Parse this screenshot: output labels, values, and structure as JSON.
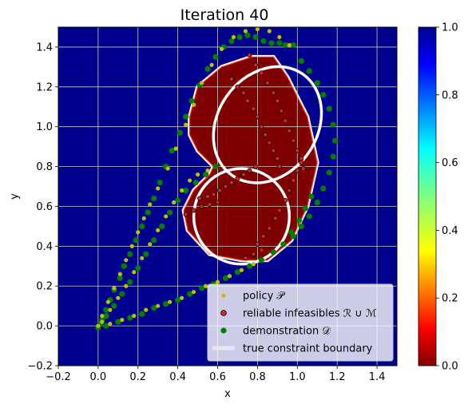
{
  "chart_data": {
    "type": "scatter",
    "title": "Iteration 40",
    "xlabel": "x",
    "ylabel": "y",
    "xlim": [
      -0.2,
      1.5
    ],
    "ylim": [
      -0.2,
      1.5
    ],
    "x_ticks": [
      "−0.2",
      "0.0",
      "0.2",
      "0.4",
      "0.6",
      "0.8",
      "1.0",
      "1.2",
      "1.4"
    ],
    "x_tick_values": [
      -0.2,
      0.0,
      0.2,
      0.4,
      0.6,
      0.8,
      1.0,
      1.2,
      1.4
    ],
    "y_ticks": [
      "−0.2",
      "0.0",
      "0.2",
      "0.4",
      "0.6",
      "0.8",
      "1.0",
      "1.2",
      "1.4"
    ],
    "y_tick_values": [
      -0.2,
      0.0,
      0.2,
      0.4,
      0.6,
      0.8,
      1.0,
      1.2,
      1.4
    ],
    "grid": true,
    "legend_position": "lower-right",
    "colorbar": {
      "range": [
        0.0,
        1.0
      ],
      "ticks": [
        "0.0",
        "0.2",
        "0.4",
        "0.6",
        "0.8",
        "1.0"
      ],
      "tick_values": [
        0.0,
        0.2,
        0.4,
        0.6,
        0.8,
        1.0
      ],
      "colormap": "jet_r"
    },
    "background_value": 1.0,
    "background_color": "#00008f",
    "infeasible_region": {
      "value": 0.0,
      "color": "#800000",
      "polygon": [
        [
          0.46,
          1.05
        ],
        [
          0.5,
          1.2
        ],
        [
          0.62,
          1.3
        ],
        [
          0.77,
          1.35
        ],
        [
          0.88,
          1.35
        ],
        [
          0.95,
          1.25
        ],
        [
          1.05,
          1.05
        ],
        [
          1.1,
          0.82
        ],
        [
          1.05,
          0.6
        ],
        [
          0.97,
          0.43
        ],
        [
          0.85,
          0.33
        ],
        [
          0.72,
          0.33
        ],
        [
          0.56,
          0.36
        ],
        [
          0.45,
          0.48
        ],
        [
          0.43,
          0.58
        ],
        [
          0.48,
          0.68
        ],
        [
          0.56,
          0.76
        ],
        [
          0.58,
          0.8
        ],
        [
          0.5,
          0.88
        ],
        [
          0.46,
          0.96
        ]
      ]
    },
    "constraint_boundaries": [
      {
        "type": "ellipse",
        "center": [
          0.85,
          1.01
        ],
        "rx": 0.25,
        "ry": 0.31,
        "rotation_deg": 35
      },
      {
        "type": "ellipse",
        "center": [
          0.72,
          0.55
        ],
        "rx": 0.24,
        "ry": 0.24,
        "rotation_deg": 0
      }
    ],
    "legend": [
      {
        "label": "policy 𝒫",
        "marker": "small-dot",
        "color": "#bfbf00"
      },
      {
        "label": "reliable infeasibles ℛ ∪ ℳ",
        "marker": "dot-outlined",
        "color": "#d62728"
      },
      {
        "label": "demonstration 𝒟",
        "marker": "dot",
        "color": "#008000"
      },
      {
        "label": "true constraint boundary",
        "marker": "line",
        "color": "#e6e6f5"
      }
    ],
    "series": [
      {
        "name": "policy 𝒫",
        "color": "#bfbf00",
        "points": [
          [
            0.0,
            0.0
          ],
          [
            0.02,
            0.05
          ],
          [
            0.05,
            0.12
          ],
          [
            0.08,
            0.19
          ],
          [
            0.11,
            0.26
          ],
          [
            0.14,
            0.33
          ],
          [
            0.17,
            0.4
          ],
          [
            0.2,
            0.47
          ],
          [
            0.23,
            0.54
          ],
          [
            0.26,
            0.61
          ],
          [
            0.3,
            0.69
          ],
          [
            0.35,
            0.79
          ],
          [
            0.39,
            0.89
          ],
          [
            0.44,
            1.01
          ],
          [
            0.48,
            1.11
          ],
          [
            0.52,
            1.22
          ],
          [
            0.57,
            1.31
          ],
          [
            0.62,
            1.39
          ],
          [
            0.68,
            1.45
          ],
          [
            0.74,
            1.48
          ],
          [
            0.8,
            1.49
          ],
          [
            0.86,
            1.48
          ],
          [
            0.91,
            1.45
          ],
          [
            0.96,
            1.41
          ],
          [
            0.02,
            0.02
          ],
          [
            0.06,
            0.08
          ],
          [
            0.1,
            0.14
          ],
          [
            0.14,
            0.2
          ],
          [
            0.18,
            0.27
          ],
          [
            0.22,
            0.34
          ],
          [
            0.26,
            0.41
          ],
          [
            0.3,
            0.48
          ],
          [
            0.34,
            0.55
          ],
          [
            0.38,
            0.62
          ],
          [
            0.42,
            0.68
          ],
          [
            0.46,
            0.73
          ],
          [
            0.5,
            0.76
          ],
          [
            0.55,
            0.78
          ],
          [
            0.06,
            0.01
          ],
          [
            0.12,
            0.03
          ],
          [
            0.18,
            0.05
          ],
          [
            0.24,
            0.08
          ],
          [
            0.3,
            0.1
          ],
          [
            0.36,
            0.12
          ],
          [
            0.42,
            0.14
          ],
          [
            0.48,
            0.17
          ],
          [
            0.54,
            0.2
          ],
          [
            0.6,
            0.22
          ],
          [
            0.66,
            0.25
          ],
          [
            0.72,
            0.28
          ],
          [
            0.78,
            0.31
          ]
        ]
      },
      {
        "name": "reliable infeasibles ℛ ∪ ℳ",
        "color": "#d62728",
        "points": [
          [
            0.67,
            1.24
          ],
          [
            0.7,
            1.2
          ],
          [
            0.73,
            1.17
          ],
          [
            0.75,
            1.13
          ],
          [
            0.78,
            1.09
          ],
          [
            0.8,
            1.05
          ],
          [
            0.82,
            1.0
          ],
          [
            0.84,
            0.96
          ],
          [
            0.86,
            0.92
          ],
          [
            0.88,
            0.88
          ],
          [
            0.9,
            0.84
          ],
          [
            0.91,
            0.8
          ],
          [
            0.76,
            1.36
          ],
          [
            0.79,
            1.31
          ],
          [
            0.82,
            1.27
          ],
          [
            0.85,
            1.22
          ],
          [
            0.88,
            1.17
          ],
          [
            0.9,
            1.13
          ],
          [
            0.92,
            1.08
          ],
          [
            0.94,
            1.03
          ],
          [
            0.96,
            0.98
          ],
          [
            0.98,
            0.93
          ],
          [
            1.0,
            0.88
          ],
          [
            1.02,
            0.84
          ],
          [
            1.03,
            0.79
          ],
          [
            0.51,
            0.64
          ],
          [
            0.55,
            0.65
          ],
          [
            0.58,
            0.66
          ],
          [
            0.61,
            0.68
          ],
          [
            0.64,
            0.7
          ],
          [
            0.67,
            0.72
          ],
          [
            0.7,
            0.74
          ],
          [
            0.73,
            0.76
          ],
          [
            0.76,
            0.78
          ],
          [
            0.79,
            0.8
          ],
          [
            0.44,
            0.56
          ],
          [
            0.48,
            0.58
          ],
          [
            0.52,
            0.6
          ],
          [
            0.56,
            0.61
          ],
          [
            0.6,
            0.62
          ],
          [
            0.8,
            0.41
          ],
          [
            0.83,
            0.45
          ],
          [
            0.86,
            0.49
          ],
          [
            0.89,
            0.54
          ],
          [
            0.91,
            0.58
          ],
          [
            0.94,
            0.63
          ],
          [
            0.96,
            0.68
          ],
          [
            0.98,
            0.73
          ],
          [
            1.0,
            0.78
          ],
          [
            1.02,
            0.82
          ],
          [
            0.74,
            0.34
          ],
          [
            0.78,
            0.36
          ],
          [
            0.82,
            0.38
          ]
        ]
      },
      {
        "name": "demonstration 𝒟",
        "color": "#008000",
        "points": [
          [
            0.0,
            -0.01
          ],
          [
            0.02,
            0.03
          ],
          [
            0.04,
            0.08
          ],
          [
            0.06,
            0.13
          ],
          [
            0.08,
            0.18
          ],
          [
            0.11,
            0.24
          ],
          [
            0.13,
            0.3
          ],
          [
            0.16,
            0.36
          ],
          [
            0.19,
            0.43
          ],
          [
            0.22,
            0.5
          ],
          [
            0.25,
            0.57
          ],
          [
            0.28,
            0.64
          ],
          [
            0.31,
            0.72
          ],
          [
            0.34,
            0.8
          ],
          [
            0.37,
            0.88
          ],
          [
            0.41,
            0.97
          ],
          [
            0.44,
            1.05
          ],
          [
            0.47,
            1.13
          ],
          [
            0.51,
            1.21
          ],
          [
            0.55,
            1.29
          ],
          [
            0.59,
            1.35
          ],
          [
            0.63,
            1.4
          ],
          [
            0.67,
            1.43
          ],
          [
            0.71,
            1.45
          ],
          [
            0.75,
            1.46
          ],
          [
            0.79,
            1.45
          ],
          [
            0.83,
            1.43
          ],
          [
            0.87,
            1.42
          ],
          [
            0.91,
            1.42
          ],
          [
            0.94,
            1.41
          ],
          [
            0.98,
            1.41
          ],
          [
            0.01,
            0.01
          ],
          [
            0.04,
            0.05
          ],
          [
            0.08,
            0.1
          ],
          [
            0.12,
            0.16
          ],
          [
            0.16,
            0.22
          ],
          [
            0.2,
            0.29
          ],
          [
            0.24,
            0.36
          ],
          [
            0.28,
            0.43
          ],
          [
            0.32,
            0.5
          ],
          [
            0.36,
            0.57
          ],
          [
            0.4,
            0.63
          ],
          [
            0.44,
            0.68
          ],
          [
            0.49,
            0.72
          ],
          [
            0.54,
            0.76
          ],
          [
            0.59,
            0.8
          ],
          [
            0.04,
            0.0
          ],
          [
            0.1,
            0.02
          ],
          [
            0.16,
            0.04
          ],
          [
            0.22,
            0.06
          ],
          [
            0.28,
            0.09
          ],
          [
            0.34,
            0.11
          ],
          [
            0.4,
            0.13
          ],
          [
            0.46,
            0.16
          ],
          [
            0.52,
            0.19
          ],
          [
            0.58,
            0.21
          ],
          [
            0.64,
            0.24
          ],
          [
            0.7,
            0.27
          ],
          [
            0.76,
            0.3
          ],
          [
            0.82,
            0.33
          ],
          [
            0.88,
            0.37
          ],
          [
            0.93,
            0.41
          ],
          [
            0.98,
            0.45
          ],
          [
            1.02,
            0.5
          ],
          [
            1.06,
            0.55
          ],
          [
            1.1,
            0.62
          ],
          [
            1.13,
            0.69
          ],
          [
            1.16,
            0.77
          ],
          [
            1.18,
            0.85
          ],
          [
            1.19,
            0.93
          ],
          [
            1.18,
            1.01
          ],
          [
            1.16,
            1.09
          ],
          [
            1.13,
            1.16
          ],
          [
            1.1,
            1.22
          ],
          [
            1.06,
            1.28
          ],
          [
            1.02,
            1.33
          ],
          [
            0.97,
            0.47
          ],
          [
            1.01,
            0.53
          ],
          [
            1.04,
            0.59
          ],
          [
            1.07,
            0.65
          ]
        ]
      }
    ]
  }
}
